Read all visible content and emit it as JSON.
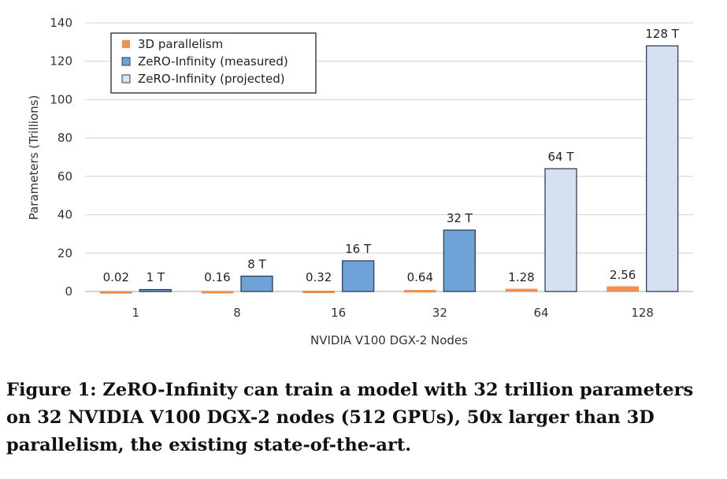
{
  "chart_data": {
    "type": "bar",
    "title": "",
    "xlabel": "NVIDIA V100 DGX-2 Nodes",
    "ylabel": "Parameters (Trillions)",
    "ylim": [
      0,
      140
    ],
    "yticks": [
      0,
      20,
      40,
      60,
      80,
      100,
      120,
      140
    ],
    "grid": true,
    "legend_position": "top-left",
    "categories": [
      "1",
      "8",
      "16",
      "32",
      "64",
      "128"
    ],
    "series": [
      {
        "name": "3D parallelism",
        "color": "#f0914e",
        "values": [
          0.02,
          0.16,
          0.32,
          0.64,
          1.28,
          2.56
        ],
        "labels": [
          "0.02",
          "0.16",
          "0.32",
          "0.64",
          "1.28",
          "2.56"
        ]
      },
      {
        "name": "ZeRO-Infinity (measured)",
        "color": "#6fa3d8",
        "values": [
          1,
          8,
          16,
          32,
          null,
          null
        ],
        "labels": [
          "1 T",
          "8 T",
          "16 T",
          "32 T",
          null,
          null
        ]
      },
      {
        "name": "ZeRO-Infinity (projected)",
        "color": "#d5e0f1",
        "values": [
          null,
          null,
          null,
          null,
          64,
          128
        ],
        "labels": [
          null,
          null,
          null,
          null,
          "64 T",
          "128 T"
        ]
      }
    ]
  },
  "caption": "Figure 1: ZeRO-Infinity can train a model with 32 trillion parameters on 32 NVIDIA V100 DGX-2 nodes (512 GPUs), 50x larger than 3D parallelism, the existing state-of-the-art."
}
